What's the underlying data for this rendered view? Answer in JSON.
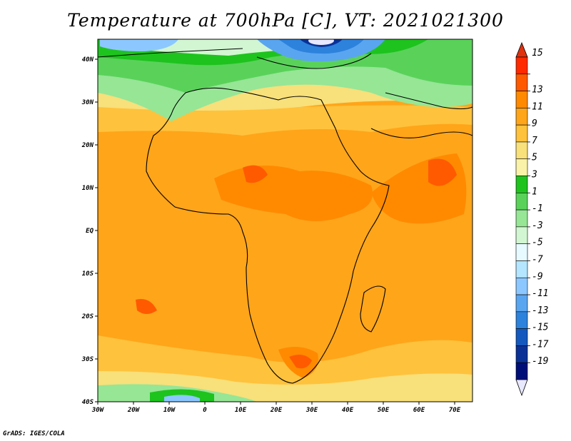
{
  "title": "Temperature at 700hPa [C], VT: 2021021300",
  "credit": "GrADS: IGES/COLA",
  "map": {
    "lon_labels": [
      "30W",
      "20W",
      "10W",
      "0",
      "10E",
      "20E",
      "30E",
      "40E",
      "50E",
      "60E",
      "70E"
    ],
    "lat_labels": [
      "40N",
      "30N",
      "20N",
      "10N",
      "EQ",
      "10S",
      "20S",
      "30S",
      "40S"
    ]
  },
  "colorbar": {
    "labels": [
      "15",
      "13",
      "11",
      "9",
      "7",
      "5",
      "3",
      "1",
      "-1",
      "-3",
      "-5",
      "-7",
      "-9",
      "-11",
      "-13",
      "-15",
      "-17",
      "-19"
    ],
    "colors": [
      "#ff2a00",
      "#ff5a00",
      "#ff8a00",
      "#ffa51a",
      "#ffc23c",
      "#f8e07a",
      "#f9f2a8",
      "#1ec31e",
      "#5ad25a",
      "#96e696",
      "#d2f6d2",
      "#e6faff",
      "#b4e6ff",
      "#8cc8ff",
      "#5aa5f0",
      "#2d82dc",
      "#1459be",
      "#0a3296",
      "#000f78"
    ],
    "top_color": "#e0320e",
    "bottom_color": "#e8e8ff"
  }
}
